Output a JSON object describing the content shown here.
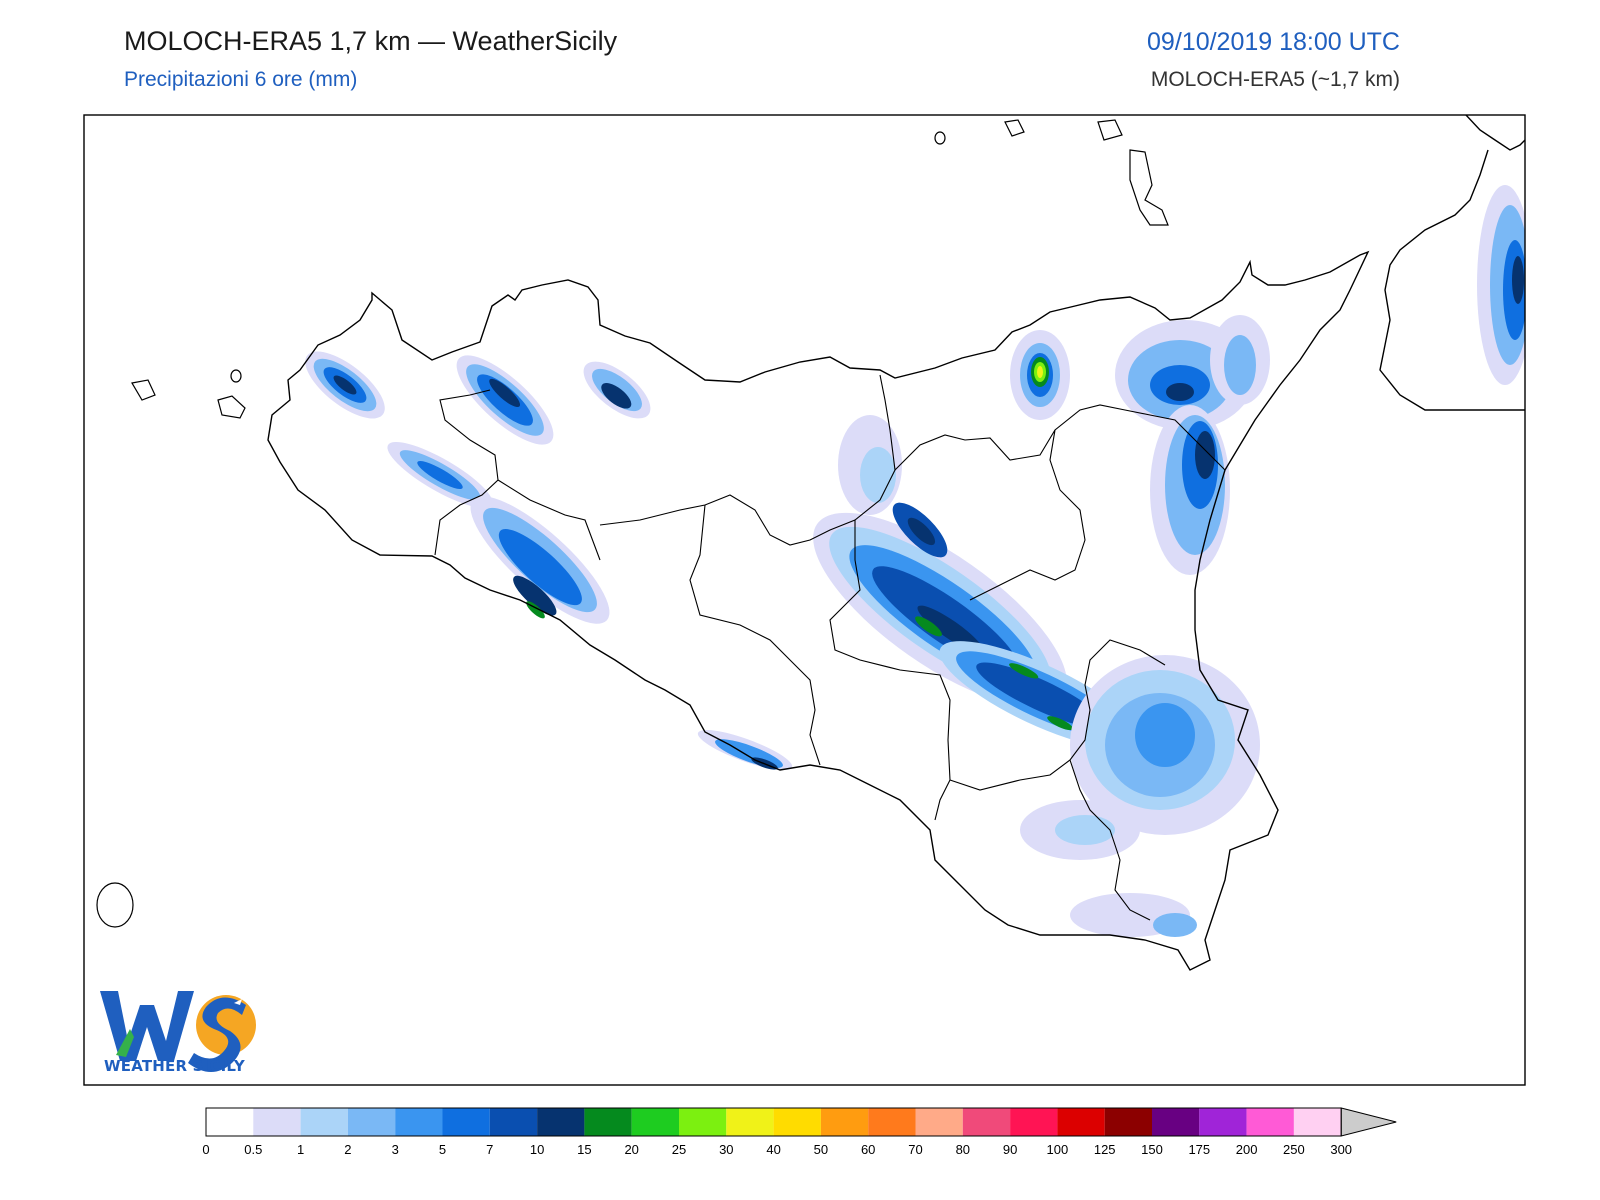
{
  "header": {
    "title": "MOLOCH-ERA5 1,7 km — WeatherSicily",
    "subtitle": "Precipitazioni 6 ore (mm)",
    "datetime": "09/10/2019 18:00 UTC",
    "model": "MOLOCH-ERA5 (~1,7 km)"
  },
  "logo": {
    "text": "WEATHER SICILY",
    "letters": "WS"
  },
  "colorbar": {
    "ticks": [
      "0",
      "0.5",
      "1",
      "2",
      "3",
      "5",
      "7",
      "10",
      "15",
      "20",
      "25",
      "30",
      "40",
      "50",
      "60",
      "70",
      "80",
      "90",
      "100",
      "125",
      "150",
      "175",
      "200",
      "250",
      "300"
    ],
    "colors": [
      "#ffffff",
      "#dcdcf8",
      "#abd4f8",
      "#7ab8f5",
      "#3a95f0",
      "#0f6fe0",
      "#0a4fb0",
      "#06336f",
      "#058a1e",
      "#1ecc20",
      "#7cf010",
      "#f0f218",
      "#ffdc00",
      "#ff9c10",
      "#ff7a1c",
      "#ffaa88",
      "#f04a7a",
      "#ff1454",
      "#dc0000",
      "#8c0000",
      "#680082",
      "#a024d8",
      "#ff5ad6",
      "#ffd0f2"
    ],
    "extend_color": "#cccccc"
  },
  "map": {
    "region": "Sicilia",
    "variable": "precipitation 6h",
    "units": "mm"
  }
}
